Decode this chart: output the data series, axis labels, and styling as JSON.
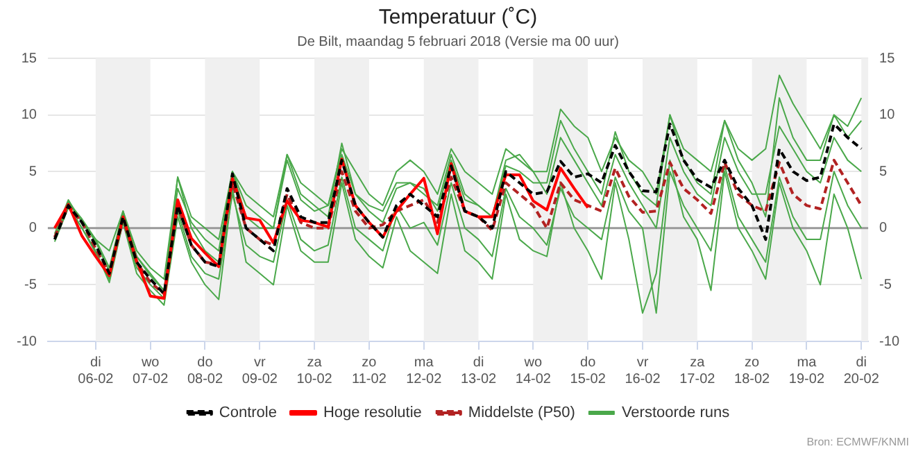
{
  "chart_data": {
    "type": "line",
    "title": "Temperatuur (˚C)",
    "subtitle": "De Bilt, maandag 5 februari 2018 (Versie ma 00 uur)",
    "annotations": [
      "Bron: ECMWF/KNMI"
    ],
    "x": [
      "2018-02-05T06:00",
      "2018-02-05T12:00",
      "2018-02-05T18:00",
      "2018-02-06T00:00",
      "2018-02-06T06:00",
      "2018-02-06T12:00",
      "2018-02-06T18:00",
      "2018-02-07T00:00",
      "2018-02-07T06:00",
      "2018-02-07T12:00",
      "2018-02-07T18:00",
      "2018-02-08T00:00",
      "2018-02-08T06:00",
      "2018-02-08T12:00",
      "2018-02-08T18:00",
      "2018-02-09T00:00",
      "2018-02-09T06:00",
      "2018-02-09T12:00",
      "2018-02-09T18:00",
      "2018-02-10T00:00",
      "2018-02-10T06:00",
      "2018-02-10T12:00",
      "2018-02-10T18:00",
      "2018-02-11T00:00",
      "2018-02-11T06:00",
      "2018-02-11T12:00",
      "2018-02-11T18:00",
      "2018-02-12T00:00",
      "2018-02-12T06:00",
      "2018-02-12T12:00",
      "2018-02-12T18:00",
      "2018-02-13T00:00",
      "2018-02-13T06:00",
      "2018-02-13T12:00",
      "2018-02-13T18:00",
      "2018-02-14T00:00",
      "2018-02-14T06:00",
      "2018-02-14T12:00",
      "2018-02-14T18:00",
      "2018-02-15T00:00",
      "2018-02-15T06:00",
      "2018-02-15T12:00",
      "2018-02-15T18:00",
      "2018-02-16T00:00",
      "2018-02-16T06:00",
      "2018-02-16T12:00",
      "2018-02-16T18:00",
      "2018-02-17T00:00",
      "2018-02-17T06:00",
      "2018-02-17T12:00",
      "2018-02-17T18:00",
      "2018-02-18T00:00",
      "2018-02-18T06:00",
      "2018-02-18T12:00",
      "2018-02-18T18:00",
      "2018-02-19T00:00",
      "2018-02-19T06:00",
      "2018-02-19T12:00",
      "2018-02-19T18:00",
      "2018-02-20T00:00"
    ],
    "xlim": [
      "2018-02-05T03:00",
      "2018-02-20T03:00"
    ],
    "xticks": [
      {
        "value": "2018-02-06",
        "label": "di\n06-02"
      },
      {
        "value": "2018-02-07",
        "label": "wo\n07-02"
      },
      {
        "value": "2018-02-08",
        "label": "do\n08-02"
      },
      {
        "value": "2018-02-09",
        "label": "vr\n09-02"
      },
      {
        "value": "2018-02-10",
        "label": "za\n10-02"
      },
      {
        "value": "2018-02-11",
        "label": "zo\n11-02"
      },
      {
        "value": "2018-02-12",
        "label": "ma\n12-02"
      },
      {
        "value": "2018-02-13",
        "label": "di\n13-02"
      },
      {
        "value": "2018-02-14",
        "label": "wo\n14-02"
      },
      {
        "value": "2018-02-15",
        "label": "do\n15-02"
      },
      {
        "value": "2018-02-16",
        "label": "vr\n16-02"
      },
      {
        "value": "2018-02-17",
        "label": "za\n17-02"
      },
      {
        "value": "2018-02-18",
        "label": "zo\n18-02"
      },
      {
        "value": "2018-02-19",
        "label": "ma\n19-02"
      },
      {
        "value": "2018-02-20",
        "label": "di\n20-02"
      }
    ],
    "ylim": [
      -10,
      15
    ],
    "yticks": [
      -10,
      -5,
      0,
      5,
      10,
      15
    ],
    "y2lim": [
      -10,
      15
    ],
    "y2ticks": [
      -10,
      -5,
      0,
      5,
      10,
      15
    ],
    "grid": "y",
    "legend": "bottom",
    "marker": "none",
    "ref_lines": [
      {
        "axis": "y",
        "value": 0,
        "color": "#999999"
      }
    ],
    "bands": [
      {
        "axis": "x",
        "from": "2018-02-06",
        "to": "2018-02-07",
        "color": "#f0f0f0"
      },
      {
        "axis": "x",
        "from": "2018-02-08",
        "to": "2018-02-09",
        "color": "#f0f0f0"
      },
      {
        "axis": "x",
        "from": "2018-02-10",
        "to": "2018-02-11",
        "color": "#f0f0f0"
      },
      {
        "axis": "x",
        "from": "2018-02-12",
        "to": "2018-02-13",
        "color": "#f0f0f0"
      },
      {
        "axis": "x",
        "from": "2018-02-14",
        "to": "2018-02-15",
        "color": "#f0f0f0"
      },
      {
        "axis": "x",
        "from": "2018-02-16",
        "to": "2018-02-17",
        "color": "#f0f0f0"
      },
      {
        "axis": "x",
        "from": "2018-02-18",
        "to": "2018-02-19",
        "color": "#f0f0f0"
      },
      {
        "axis": "x",
        "from": "2018-02-20",
        "to": "2018-02-20T03:00",
        "color": "#f0f0f0"
      }
    ],
    "series": [
      {
        "name": "Controle",
        "color": "#000000",
        "line_style": "dashed",
        "values": [
          -1.0,
          2.0,
          0.5,
          -1.5,
          -4.0,
          1.0,
          -3.0,
          -4.5,
          -5.8,
          2.0,
          -1.5,
          -3.0,
          -3.4,
          4.8,
          0.0,
          -1.0,
          -2.0,
          3.5,
          1.0,
          0.5,
          0.5,
          6.0,
          2.0,
          0.5,
          -0.8,
          2.0,
          3.0,
          2.0,
          1.0,
          5.5,
          1.5,
          1.0,
          0.0,
          5.0,
          4.0,
          3.0,
          3.2,
          5.9,
          4.5,
          4.8,
          4.0,
          7.3,
          5.0,
          3.3,
          3.2,
          9.2,
          6.0,
          4.3,
          3.6,
          6.0,
          3.5,
          2.0,
          -1.0,
          7.0,
          5.0,
          4.2,
          4.5,
          9.2,
          8.0,
          7.0
        ]
      },
      {
        "name": "Hoge resolutie",
        "color": "#ff0000",
        "line_style": "solid",
        "values": [
          0.0,
          2.1,
          -0.7,
          -2.5,
          -4.2,
          1.0,
          -2.9,
          -6.0,
          -6.2,
          2.5,
          -0.9,
          -2.2,
          -3.4,
          4.4,
          0.9,
          0.7,
          -1.3,
          2.4,
          0.7,
          0.5,
          0.1,
          6.1,
          2.0,
          0.5,
          -0.8,
          1.5,
          3.0,
          4.4,
          -0.5,
          5.7,
          1.5,
          1.0,
          1.0,
          4.7,
          4.7,
          2.4,
          1.6,
          5.3,
          3.5,
          1.8,
          null,
          null,
          null,
          null,
          null,
          null,
          null,
          null,
          null,
          null,
          null,
          null,
          null,
          null,
          null,
          null,
          null,
          null,
          null,
          null
        ]
      },
      {
        "name": "Middelste (P50)",
        "color": "#b22222",
        "line_style": "dashed",
        "values": [
          -0.8,
          2.0,
          0.5,
          -1.8,
          -4.0,
          0.8,
          -3.0,
          -4.8,
          -5.8,
          2.0,
          -1.5,
          -3.0,
          -3.2,
          4.0,
          0.0,
          -1.0,
          -1.5,
          3.0,
          0.5,
          0.0,
          0.0,
          5.0,
          1.5,
          0.0,
          0.3,
          1.5,
          2.0,
          2.5,
          0.5,
          4.5,
          1.5,
          1.0,
          -0.2,
          4.0,
          3.0,
          2.0,
          0.0,
          4.0,
          2.5,
          2.0,
          1.5,
          5.3,
          2.8,
          1.4,
          1.5,
          5.8,
          3.5,
          2.5,
          1.3,
          5.8,
          3.0,
          2.0,
          1.5,
          5.8,
          3.0,
          2.0,
          1.7,
          6.0,
          4.0,
          2.0
        ]
      },
      {
        "name": "Verstoorde runs",
        "color": "#4aa84a",
        "line_style": "solid",
        "values": [
          -0.5,
          2.5,
          0.5,
          -1,
          -2,
          1.5,
          -2,
          -3.5,
          -4.5,
          4.5,
          1,
          0,
          -1,
          5,
          3,
          2,
          1,
          6.5,
          4,
          3,
          2,
          7,
          5,
          3,
          2,
          5,
          6,
          5,
          3,
          7,
          5,
          4,
          3,
          7,
          6,
          5,
          5,
          10.5,
          9,
          8,
          5,
          8,
          6,
          5,
          3,
          10,
          7,
          6,
          5,
          9.5,
          7,
          6,
          7,
          13.5,
          11,
          9,
          7,
          10,
          9,
          11.5
        ]
      },
      {
        "color": "#4aa84a",
        "line_style": "solid",
        "values": [
          -1,
          2,
          0,
          -2,
          -4.8,
          0.5,
          -4,
          -5.5,
          -6.8,
          1,
          -3,
          -5,
          -6.3,
          3.5,
          -3,
          -4,
          -5,
          2,
          -2,
          -3,
          -3,
          4,
          -1,
          -2.5,
          -3.5,
          1,
          -2,
          -3,
          -4,
          3,
          -2,
          -3,
          -4.5,
          3,
          -1,
          -2,
          -2.5,
          4,
          0,
          -2,
          -4.5,
          4,
          -1,
          -7.5,
          -4,
          6,
          1,
          -1,
          -5.5,
          5,
          0,
          -2,
          -4.5,
          4,
          0,
          -2,
          -5,
          3,
          0,
          -4.5
        ]
      },
      {
        "color": "#4aa84a",
        "line_style": "solid",
        "values": [
          -1,
          2.3,
          0.8,
          -1,
          -3.5,
          1.5,
          -2.5,
          -4,
          -5.5,
          3.5,
          0.5,
          -1,
          -2,
          5,
          2,
          1,
          0,
          6.5,
          3,
          2,
          1,
          7.5,
          3,
          2,
          1.5,
          4,
          4,
          3,
          2,
          6.5,
          3,
          2,
          1,
          6,
          6.5,
          5,
          3,
          8,
          6,
          4,
          2,
          6.5,
          4,
          2,
          0,
          8,
          5,
          3,
          2,
          8,
          5,
          3,
          3,
          9,
          7,
          5,
          4,
          8,
          6,
          5
        ]
      },
      {
        "color": "#4aa84a",
        "line_style": "solid",
        "values": [
          -1.2,
          1.8,
          0,
          -2.2,
          -4.5,
          0.5,
          -3.5,
          -5,
          -6.2,
          1.5,
          -2.5,
          -4,
          -4.5,
          3,
          -1.5,
          -2.5,
          -3,
          2.5,
          -1,
          -2,
          -1.5,
          4.5,
          0,
          -1,
          -2,
          2,
          0,
          0.5,
          -1.5,
          4,
          0,
          -1,
          -2.5,
          3.5,
          1,
          0,
          -1.5,
          3.5,
          1,
          0,
          -1,
          4.5,
          1.5,
          0,
          -7.5,
          5,
          2,
          0,
          -2,
          5.5,
          1,
          -1,
          -3,
          4.5,
          1,
          -1,
          -1,
          5,
          2,
          0
        ]
      },
      {
        "color": "#4aa84a",
        "line_style": "solid",
        "values": [
          -0.8,
          2.2,
          0.6,
          -1.2,
          -3.8,
          1.2,
          -2.5,
          -4.2,
          -5.5,
          4.5,
          0,
          -2,
          -3,
          5,
          1,
          0,
          0,
          6,
          2.5,
          1.5,
          2,
          6.5,
          3,
          1.5,
          0.5,
          3.5,
          4,
          3.5,
          1.5,
          6,
          2.5,
          2,
          1,
          5.5,
          5,
          4,
          4,
          9.5,
          7,
          5,
          3,
          8.5,
          5,
          3,
          2,
          10,
          6,
          4,
          3,
          9.5,
          6,
          4,
          1,
          11.5,
          8,
          6,
          6,
          10,
          8,
          9.5
        ]
      }
    ]
  }
}
